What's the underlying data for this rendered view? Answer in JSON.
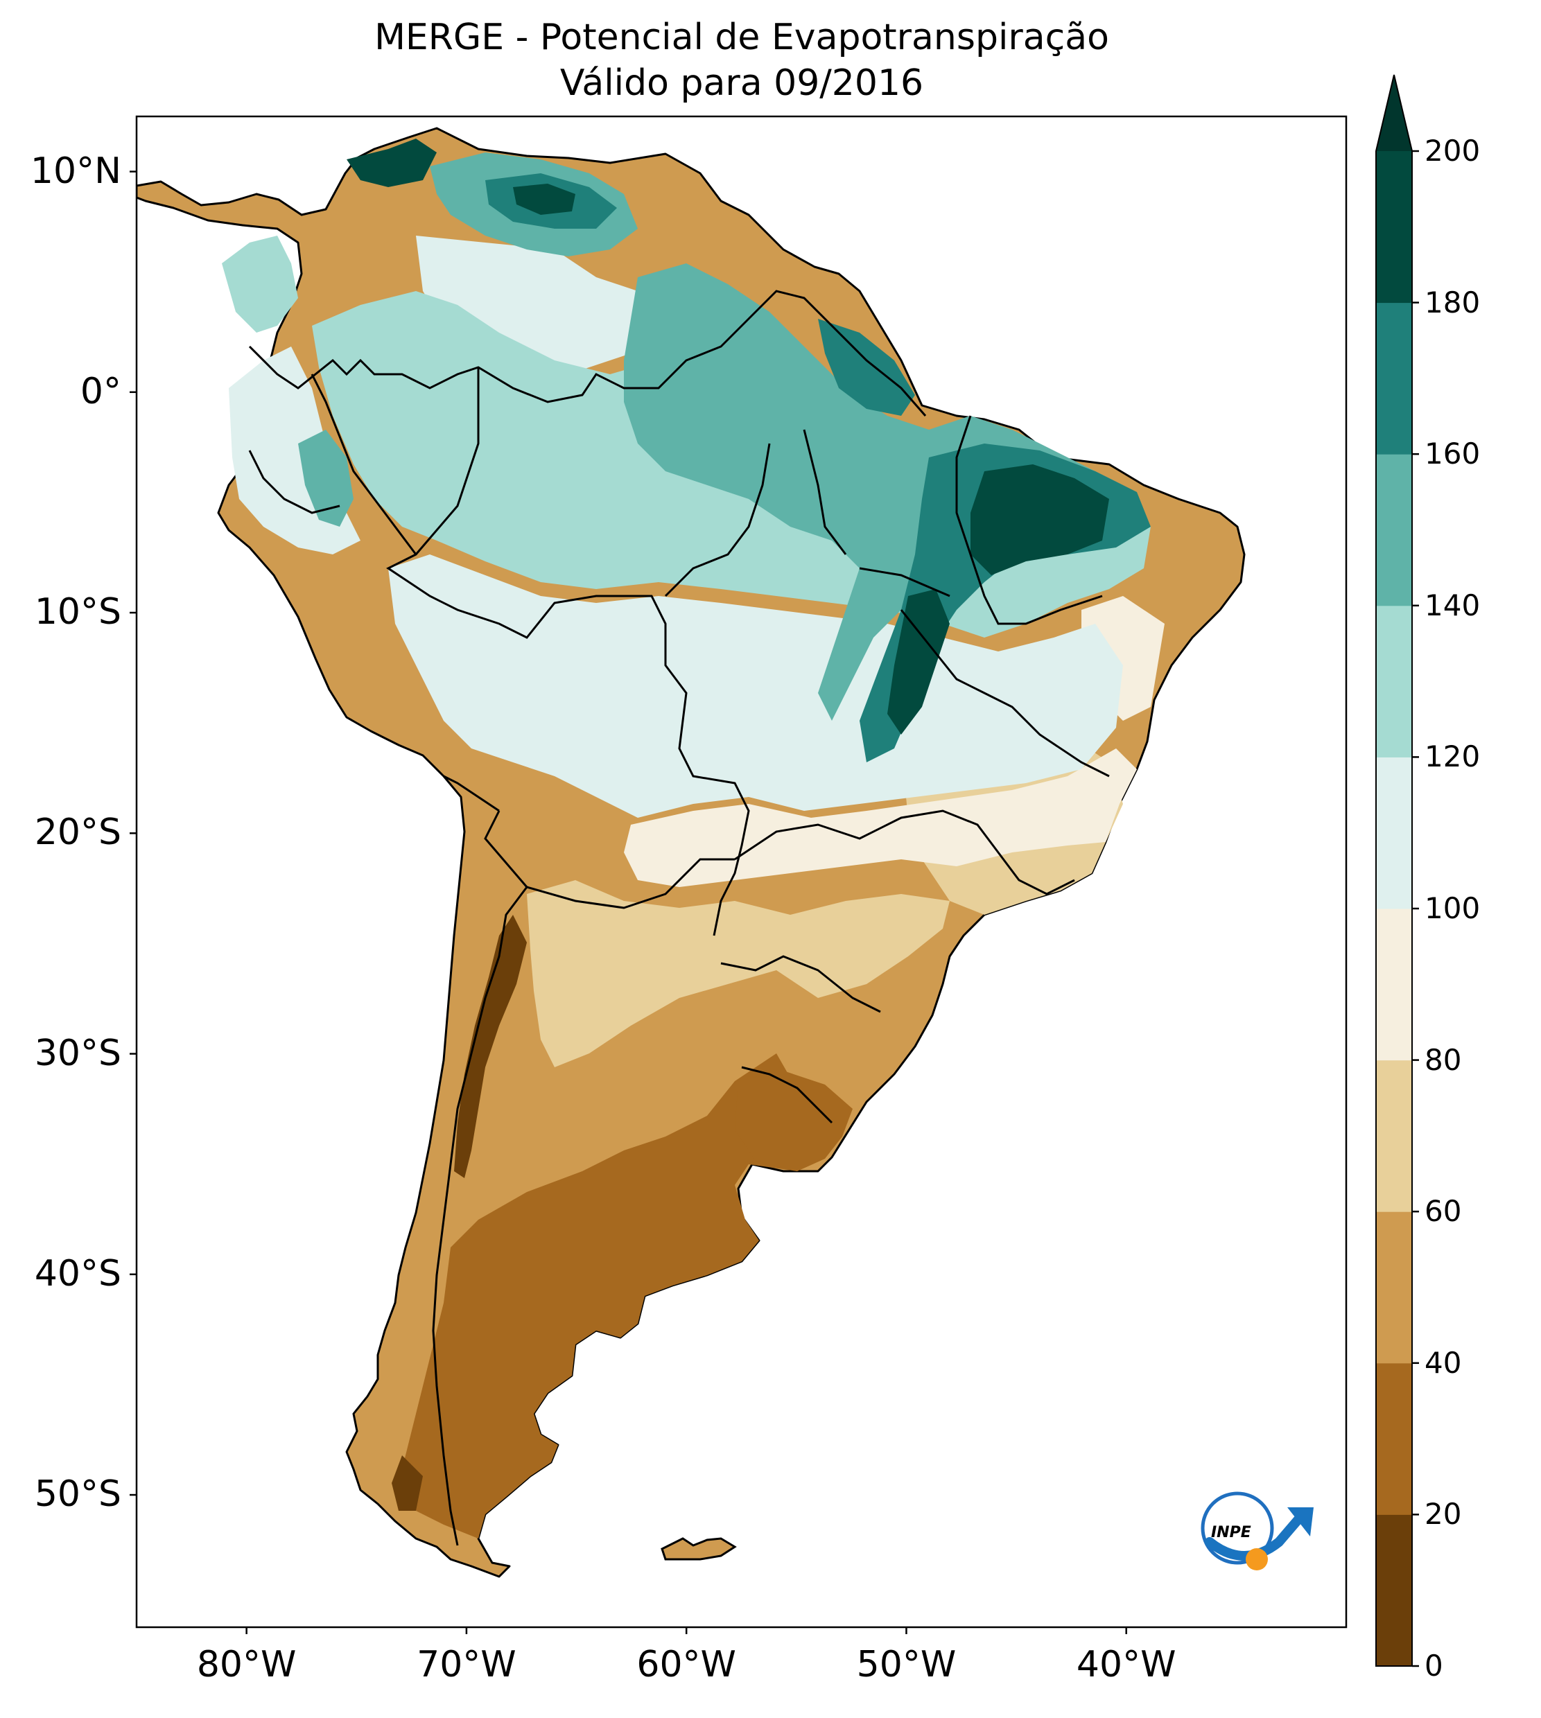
{
  "title": "MERGE - Potencial de Evapotranspiração",
  "subtitle": "Válido para 09/2016",
  "map": {
    "lon_range": [
      -85,
      -30
    ],
    "lat_range": [
      -56,
      12.5
    ],
    "lat_ticks": [
      {
        "value": 10,
        "label": "10°N"
      },
      {
        "value": 0,
        "label": "0°"
      },
      {
        "value": -10,
        "label": "10°S"
      },
      {
        "value": -20,
        "label": "20°S"
      },
      {
        "value": -30,
        "label": "30°S"
      },
      {
        "value": -40,
        "label": "40°S"
      },
      {
        "value": -50,
        "label": "50°S"
      }
    ],
    "lon_ticks": [
      {
        "value": -80,
        "label": "80°W"
      },
      {
        "value": -70,
        "label": "70°W"
      },
      {
        "value": -60,
        "label": "60°W"
      },
      {
        "value": -50,
        "label": "50°W"
      },
      {
        "value": -40,
        "label": "40°W"
      }
    ]
  },
  "colorbar": {
    "levels": [
      0,
      20,
      40,
      60,
      80,
      100,
      120,
      140,
      160,
      180,
      200
    ],
    "colors": [
      "#6b3f0a",
      "#a6691f",
      "#cf9b50",
      "#e8d09a",
      "#f6efdf",
      "#dff0ee",
      "#a5dbd2",
      "#5fb3a8",
      "#1f807a",
      "#024a3e"
    ],
    "extend_color": "#01362d",
    "extend": "max",
    "labels": [
      "0",
      "20",
      "40",
      "60",
      "80",
      "100",
      "120",
      "140",
      "160",
      "180",
      "200"
    ]
  },
  "logo": {
    "text": "INPE"
  }
}
